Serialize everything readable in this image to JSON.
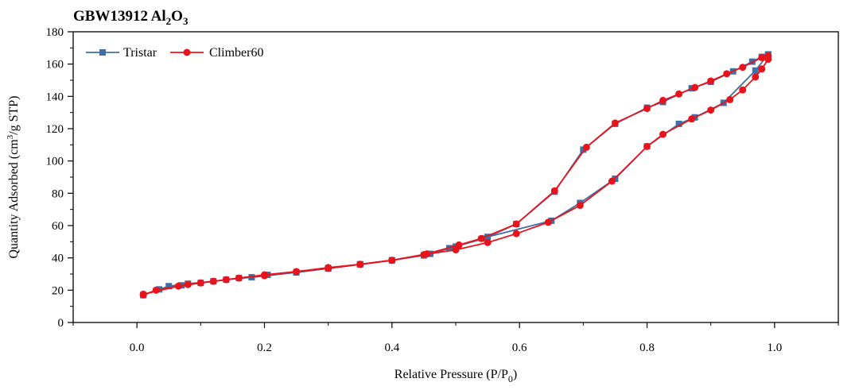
{
  "chart_data": {
    "type": "scatter",
    "title": {
      "prefix": "GBW13912 Al",
      "sub1": "2",
      "mid": "O",
      "sub2": "3"
    },
    "xlabel": {
      "main": "Relative Pressure (P/P",
      "sub": "0",
      "end": ")"
    },
    "ylabel": {
      "main": "Quantity Adsorbed (cm",
      "sup": "3",
      "end": "/g STP)"
    },
    "xlim": [
      -0.1,
      1.1
    ],
    "ylim": [
      0,
      180
    ],
    "xticks": [
      0.0,
      0.2,
      0.4,
      0.6,
      0.8,
      1.0
    ],
    "xtick_labels": [
      "0.0",
      "0.2",
      "0.4",
      "0.6",
      "0.8",
      "1.0"
    ],
    "yticks": [
      0,
      20,
      40,
      60,
      80,
      100,
      120,
      140,
      160,
      180
    ],
    "ytick_labels": [
      "0",
      "20",
      "40",
      "60",
      "80",
      "100",
      "120",
      "140",
      "160",
      "180"
    ],
    "legend_position": "top-left",
    "series": [
      {
        "name": "Tristar",
        "color": "#3f6fa3",
        "marker": "square",
        "adsorption_x": [
          0.01,
          0.035,
          0.07,
          0.1,
          0.14,
          0.18,
          0.25,
          0.3,
          0.35,
          0.4,
          0.45,
          0.49,
          0.55,
          0.65,
          0.695,
          0.75,
          0.8,
          0.85,
          0.875,
          0.92,
          0.97,
          0.99
        ],
        "adsorption_y": [
          17,
          20.5,
          23,
          24.5,
          26.5,
          28,
          31,
          33.5,
          36,
          38.5,
          41.5,
          46,
          53,
          63,
          74,
          89,
          109,
          123,
          127,
          136,
          156,
          166
        ],
        "desorption_x": [
          0.99,
          0.98,
          0.965,
          0.935,
          0.9,
          0.87,
          0.825,
          0.8,
          0.75,
          0.7,
          0.655,
          0.595,
          0.545,
          0.5,
          0.46,
          0.4,
          0.35,
          0.3,
          0.25,
          0.205,
          0.16,
          0.12,
          0.08,
          0.05,
          0.01
        ],
        "desorption_y": [
          166,
          164.5,
          161.5,
          155.5,
          149,
          145,
          136.5,
          133,
          123,
          107,
          81,
          61,
          52,
          47,
          42.5,
          38.5,
          36,
          33.5,
          31,
          29.5,
          27.5,
          25.5,
          24,
          22.5,
          17
        ]
      },
      {
        "name": "Climber60",
        "color": "#e8141c",
        "marker": "circle",
        "adsorption_x": [
          0.01,
          0.03,
          0.08,
          0.12,
          0.16,
          0.2,
          0.25,
          0.3,
          0.35,
          0.4,
          0.45,
          0.5,
          0.55,
          0.595,
          0.645,
          0.695,
          0.745,
          0.8,
          0.825,
          0.87,
          0.9,
          0.93,
          0.95,
          0.97,
          0.98,
          0.99
        ],
        "adsorption_y": [
          17,
          20,
          23.5,
          25.5,
          27.5,
          29,
          31.5,
          33.5,
          36,
          38.5,
          42,
          45,
          49.5,
          55,
          62,
          72.5,
          87.5,
          109,
          116.5,
          126,
          131.5,
          138,
          144,
          152,
          157,
          163
        ],
        "desorption_x": [
          0.99,
          0.98,
          0.95,
          0.925,
          0.9,
          0.875,
          0.85,
          0.825,
          0.8,
          0.75,
          0.705,
          0.655,
          0.595,
          0.54,
          0.505,
          0.455,
          0.4,
          0.35,
          0.3,
          0.25,
          0.2,
          0.14,
          0.1,
          0.065,
          0.01
        ],
        "desorption_y": [
          165,
          164,
          158,
          154,
          149.5,
          145.5,
          141.5,
          137.5,
          132.5,
          123.5,
          108.5,
          81.5,
          61,
          52,
          48,
          42.5,
          38.5,
          36,
          34,
          31.5,
          29.5,
          26.5,
          24.5,
          22.5,
          17.5
        ]
      }
    ]
  }
}
